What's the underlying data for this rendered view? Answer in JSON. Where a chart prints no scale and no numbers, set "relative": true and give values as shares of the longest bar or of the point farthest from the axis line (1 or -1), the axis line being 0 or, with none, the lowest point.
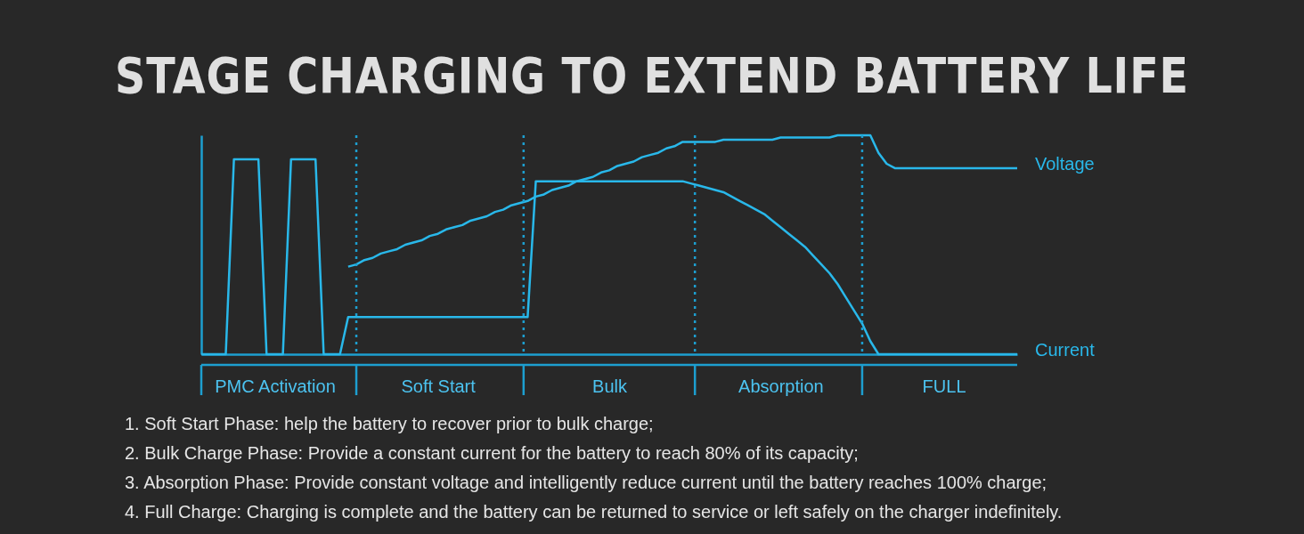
{
  "chart_data": {
    "type": "line",
    "title": "STAGE CHARGING TO EXTEND BATTERY LIFE",
    "relative": true,
    "legend": false,
    "grid": false,
    "categories": [
      null,
      null,
      null,
      null,
      null,
      null,
      null,
      null,
      null,
      "PMC Activation",
      null,
      null,
      null,
      null,
      null,
      null,
      null,
      null,
      null,
      null,
      null,
      null,
      null,
      null,
      null,
      null,
      null,
      null,
      null,
      "Soft Start",
      null,
      null,
      null,
      null,
      null,
      null,
      null,
      null,
      null,
      null,
      null,
      null,
      null,
      null,
      null,
      null,
      null,
      null,
      null,
      null,
      "Bulk",
      null,
      null,
      null,
      null,
      null,
      null,
      null,
      null,
      null,
      null,
      null,
      null,
      null,
      null,
      null,
      null,
      null,
      null,
      null,
      null,
      "Absorption",
      null,
      null,
      null,
      null,
      null,
      null,
      null,
      null,
      null,
      null,
      null,
      null,
      null,
      null,
      null,
      null,
      null,
      null,
      null,
      "FULL",
      null,
      null,
      null,
      null,
      null,
      null,
      null,
      null,
      null
    ],
    "series": [
      {
        "name": "Voltage",
        "color": "#29b8ea",
        "values": [
          null,
          null,
          null,
          null,
          null,
          null,
          null,
          null,
          null,
          null,
          null,
          null,
          null,
          null,
          null,
          null,
          null,
          null,
          0.4,
          0.41,
          0.43,
          0.44,
          0.46,
          0.47,
          0.48,
          0.5,
          0.51,
          0.52,
          0.54,
          0.55,
          0.57,
          0.58,
          0.59,
          0.61,
          0.62,
          0.63,
          0.65,
          0.66,
          0.68,
          0.69,
          0.7,
          0.72,
          0.73,
          0.75,
          0.76,
          0.77,
          0.79,
          0.8,
          0.81,
          0.83,
          0.84,
          0.86,
          0.87,
          0.88,
          0.9,
          0.91,
          0.92,
          0.94,
          0.95,
          0.97,
          0.97,
          0.97,
          0.97,
          0.97,
          0.98,
          0.98,
          0.98,
          0.98,
          0.98,
          0.98,
          0.98,
          0.99,
          0.99,
          0.99,
          0.99,
          0.99,
          0.99,
          0.99,
          1,
          1,
          1,
          1,
          1,
          0.92,
          0.87,
          0.85,
          0.85,
          0.85,
          0.85,
          0.85,
          0.85,
          0.85,
          0.85,
          0.85,
          0.85,
          0.85,
          0.85,
          0.85,
          0.85,
          0.85,
          0.85
        ]
      },
      {
        "name": "Current",
        "color": "#29b8ea",
        "values": [
          0,
          0,
          0,
          0,
          0.89,
          0.89,
          0.89,
          0.89,
          0,
          0,
          0,
          0.89,
          0.89,
          0.89,
          0.89,
          0,
          0,
          0,
          0.17,
          0.17,
          0.17,
          0.17,
          0.17,
          0.17,
          0.17,
          0.17,
          0.17,
          0.17,
          0.17,
          0.17,
          0.17,
          0.17,
          0.17,
          0.17,
          0.17,
          0.17,
          0.17,
          0.17,
          0.17,
          0.17,
          0.17,
          0.79,
          0.79,
          0.79,
          0.79,
          0.79,
          0.79,
          0.79,
          0.79,
          0.79,
          0.79,
          0.79,
          0.79,
          0.79,
          0.79,
          0.79,
          0.79,
          0.79,
          0.79,
          0.79,
          0.78,
          0.77,
          0.76,
          0.75,
          0.74,
          0.72,
          0.7,
          0.68,
          0.66,
          0.64,
          0.61,
          0.58,
          0.55,
          0.52,
          0.49,
          0.45,
          0.41,
          0.37,
          0.32,
          0.26,
          0.2,
          0.14,
          0.06,
          0,
          0,
          0,
          0,
          0,
          0,
          0,
          0,
          0,
          0,
          0,
          0,
          0,
          0,
          0,
          0,
          0,
          0
        ]
      }
    ],
    "annotations": [
      "1. Soft Start Phase: help the battery to recover prior to bulk charge;",
      "2. Bulk Charge Phase: Provide a constant current for the battery to reach 80% of its capacity;",
      "3. Absorption Phase: Provide constant voltage and intelligently reduce current until the battery reaches 100% charge;",
      "4. Full Charge: Charging is complete and the battery can be returned to service or left safely on the charger indefinitely."
    ]
  }
}
